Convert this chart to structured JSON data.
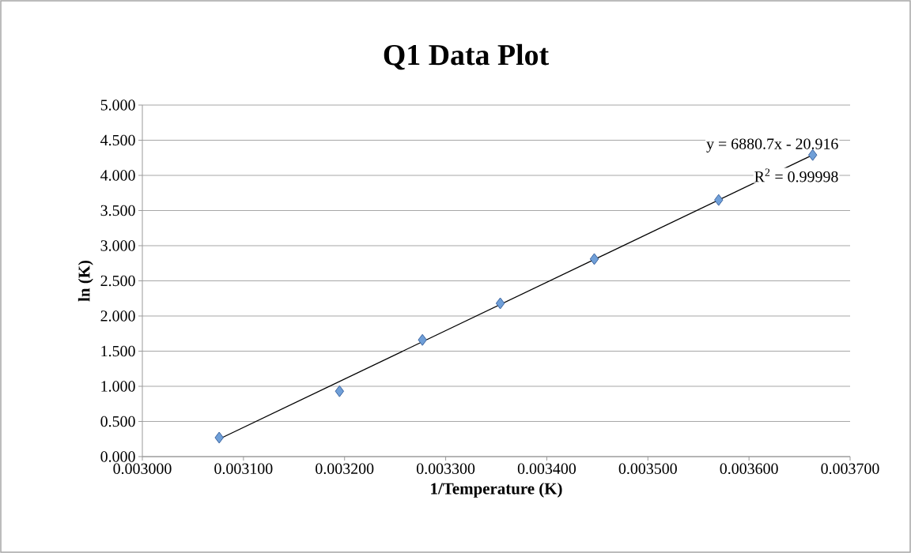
{
  "chart_data": {
    "type": "scatter",
    "title": "Q1 Data Plot",
    "xlabel": "1/Temperature (K)",
    "ylabel": "ln (K)",
    "series": [
      {
        "color": "#6f9fd8",
        "marker": "diamond",
        "x": [
          0.003076,
          0.003195,
          0.003277,
          0.003354,
          0.003447,
          0.00357,
          0.003663
        ],
        "values": [
          0.27,
          0.93,
          1.66,
          2.18,
          2.81,
          3.65,
          4.29
        ]
      },
      {
        "type": "line",
        "color": "#000000",
        "marker": "none",
        "x": [
          0.003076,
          0.003663
        ],
        "values": [
          0.25,
          4.29
        ]
      }
    ],
    "annotations": [
      "y = 6880.7x - 20.916",
      "R$^{2}$ = 0.99998"
    ],
    "xlim": [
      0.003,
      0.0037
    ],
    "xticks": [
      {
        "value": 0.003,
        "label": "0.003000"
      },
      {
        "value": 0.0031,
        "label": "0.003100"
      },
      {
        "value": 0.0032,
        "label": "0.003200"
      },
      {
        "value": 0.0033,
        "label": "0.003300"
      },
      {
        "value": 0.0034,
        "label": "0.003400"
      },
      {
        "value": 0.0035,
        "label": "0.003500"
      },
      {
        "value": 0.0036,
        "label": "0.003600"
      },
      {
        "value": 0.0037,
        "label": "0.003700"
      }
    ],
    "ylim": [
      0,
      5
    ],
    "yticks": [
      {
        "value": 0,
        "label": "0.000"
      },
      {
        "value": 0.5,
        "label": "0.500"
      },
      {
        "value": 1,
        "label": "1.000"
      },
      {
        "value": 1.5,
        "label": "1.500"
      },
      {
        "value": 2,
        "label": "2.000"
      },
      {
        "value": 2.5,
        "label": "2.500"
      },
      {
        "value": 3,
        "label": "3.000"
      },
      {
        "value": 3.5,
        "label": "3.500"
      },
      {
        "value": 4,
        "label": "4.000"
      },
      {
        "value": 4.5,
        "label": "4.500"
      },
      {
        "value": 5,
        "label": "5.000"
      }
    ],
    "grid": "y"
  }
}
